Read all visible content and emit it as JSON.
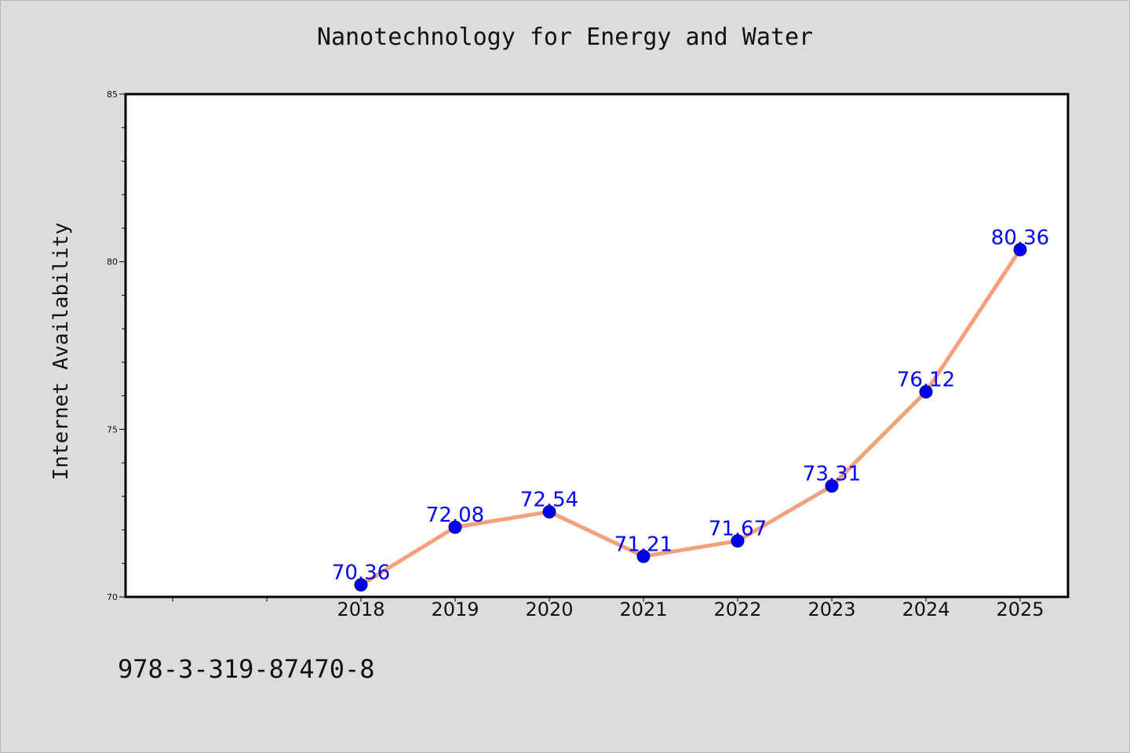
{
  "chart_data": {
    "type": "line",
    "title": "Nanotechnology for Energy and Water",
    "xlabel": "",
    "ylabel": "Internet Availability",
    "categories": [
      "2018",
      "2019",
      "2020",
      "2021",
      "2022",
      "2023",
      "2024",
      "2025"
    ],
    "series": [
      {
        "values": [
          70.36,
          72.08,
          72.54,
          71.21,
          71.67,
          73.31,
          76.12,
          80.36
        ],
        "line_color": "#f4a07c",
        "marker_color": "#0000ee"
      }
    ],
    "data_labels": [
      "70.36",
      "72.08",
      "72.54",
      "71.21",
      "71.67",
      "73.31",
      "76.12",
      "80.36"
    ],
    "ylim": [
      70,
      85
    ],
    "yticks": [
      "70",
      "75",
      "80",
      "85"
    ],
    "grid": false,
    "legend": "none"
  },
  "footer": {
    "isbn": "978-3-319-87470-8"
  },
  "colors": {
    "background": "#dcdcdc",
    "plot_background": "#ffffff",
    "data_label": "#0000ff"
  }
}
